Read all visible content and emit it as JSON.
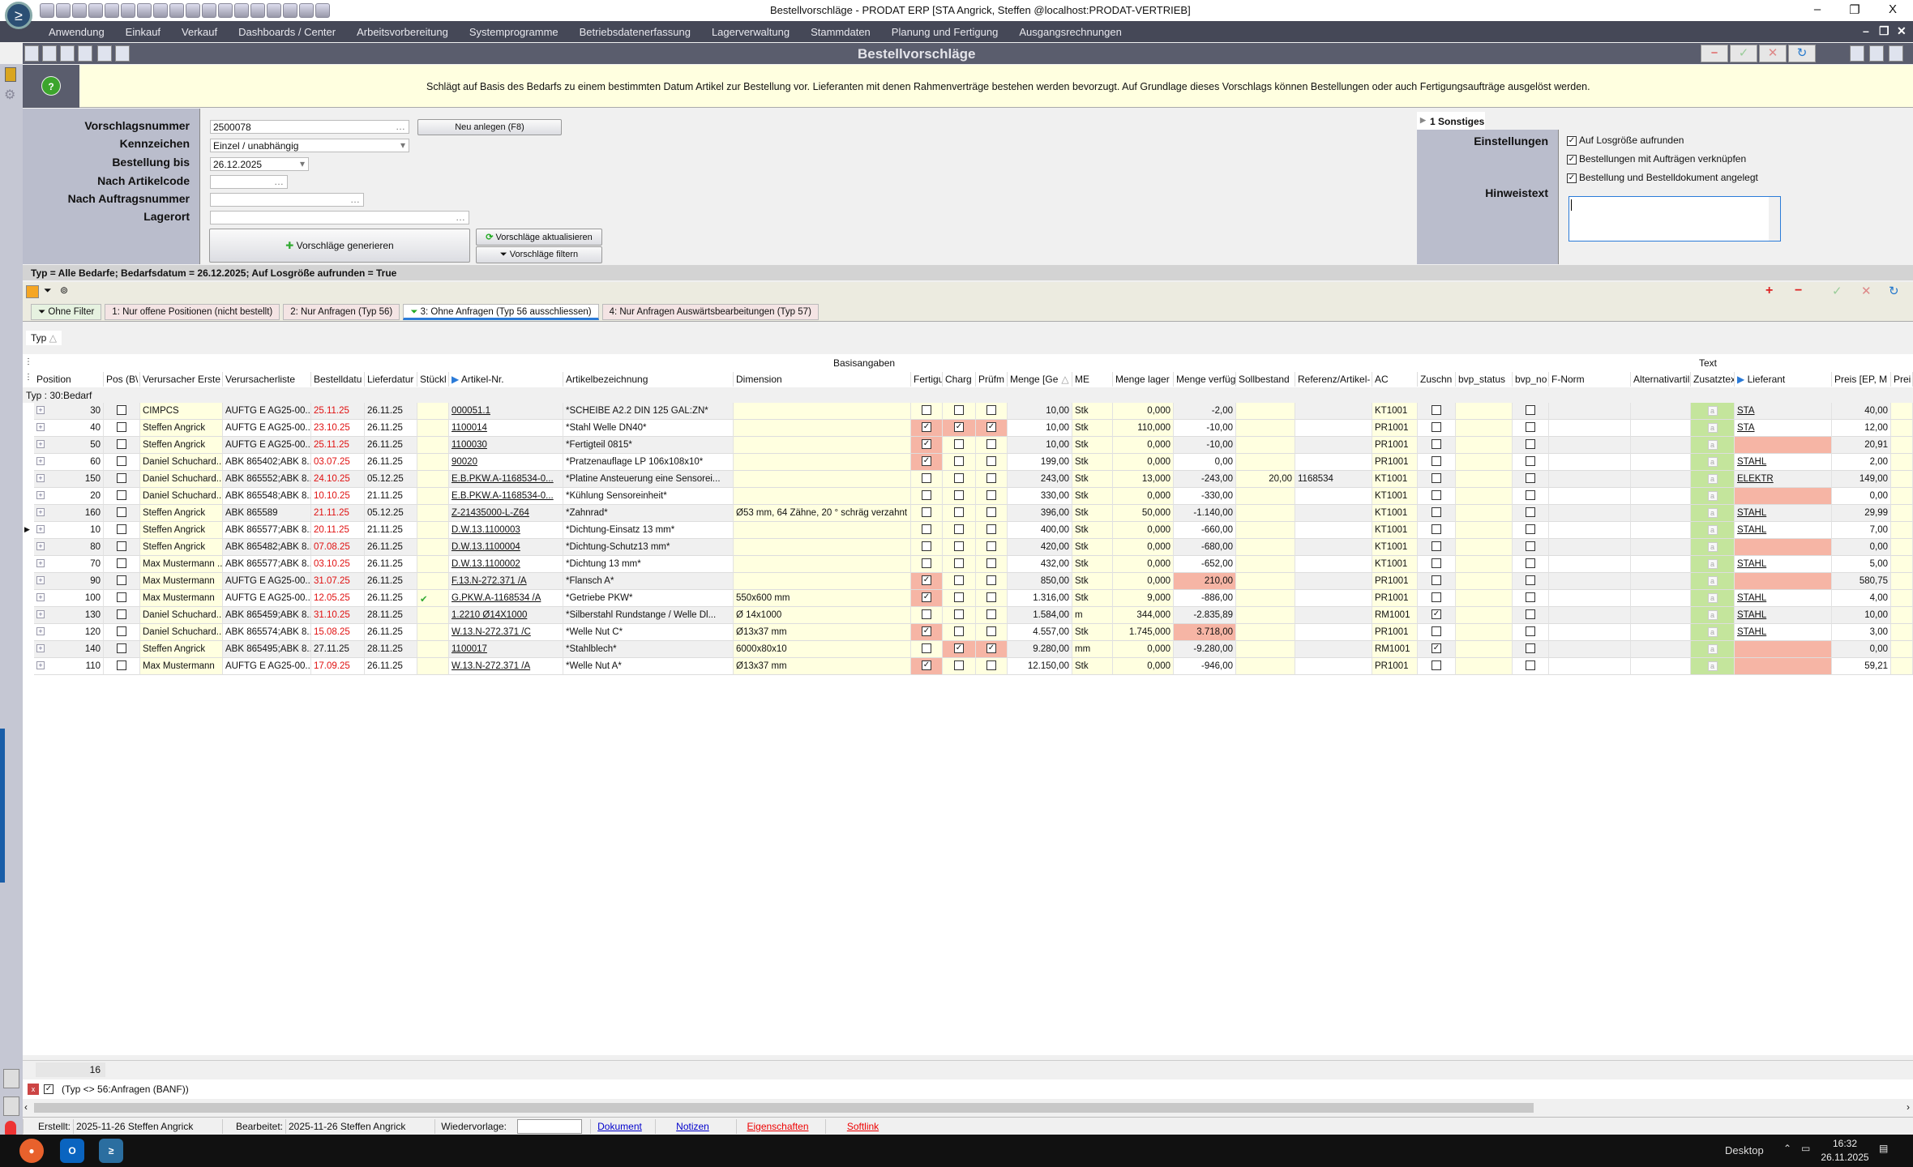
{
  "window": {
    "title": "Bestellvorschläge - PRODAT ERP  [STA Angrick, Steffen @localhost:PRODAT-VERTRIEB]",
    "minimize": "–",
    "restore": "❐",
    "close": "X"
  },
  "menu": [
    "Anwendung",
    "Einkauf",
    "Verkauf",
    "Dashboards / Center",
    "Arbeitsvorbereitung",
    "Systemprogramme",
    "Betriebsdatenerfassung",
    "Lagerverwaltung",
    "Stammdaten",
    "Planung und Fertigung",
    "Ausgangsrechnungen"
  ],
  "form_title": "Bestellvorschläge",
  "toolbar_right": {
    "delete": "−",
    "save": "✓",
    "cancel": "✕",
    "refresh": "↻"
  },
  "banner": {
    "text": "Schlägt auf Basis des Bedarfs zu einem bestimmten Datum Artikel zur Bestellung vor. Lieferanten mit denen Rahmenverträge bestehen werden bevorzugt. Auf Grundlage dieses Vorschlags können Bestellungen oder auch Fertigungsaufträge ausgelöst werden.",
    "help": "?"
  },
  "form": {
    "labels": {
      "vorschlagsnummer": "Vorschlagsnummer",
      "kennzeichen": "Kennzeichen",
      "bestellung_bis": "Bestellung bis",
      "artikelcode": "Nach Artikelcode",
      "auftragsnummer": "Nach Auftragsnummer",
      "lagerort": "Lagerort"
    },
    "values": {
      "vorschlagsnummer": "2500078",
      "kennzeichen": "Einzel / unabhängig",
      "bestellung_bis": "26.12.2025",
      "artikelcode": "",
      "auftragsnummer": "",
      "lagerort": ""
    },
    "buttons": {
      "neu": "Neu anlegen (F8)",
      "generieren": "Vorschläge generieren",
      "aktualisieren": "Vorschläge aktualisieren",
      "filtern": "Vorschläge filtern"
    }
  },
  "sonstiges": {
    "tab": "1 Sonstiges",
    "einstellungen": "Einstellungen",
    "hinweistext": "Hinweistext",
    "hinweis_value": "",
    "checks": [
      {
        "label": "Auf Losgröße aufrunden",
        "checked": true
      },
      {
        "label": "Bestellungen mit Aufträgen verknüpfen",
        "checked": true
      },
      {
        "label": "Bestellung und Bestelldokument angelegt",
        "checked": true
      }
    ]
  },
  "summary": "Typ = Alle Bedarfe; Bedarfsdatum = 26.12.2025; Auf Losgröße aufrunden = True",
  "filter_tabs": [
    {
      "label": "Ohne Filter",
      "active": false
    },
    {
      "label": "1: Nur offene Positionen (nicht bestellt)",
      "active": false
    },
    {
      "label": "2: Nur Anfragen (Typ 56)",
      "active": false
    },
    {
      "label": "3: Ohne Anfragen (Typ 56 ausschliessen)",
      "active": true
    },
    {
      "label": "4: Nur Anfragen Auswärtsbearbeitungen (Typ 57)",
      "active": false
    }
  ],
  "grid": {
    "groupby": "Typ",
    "bands": {
      "basis": "Basisangaben",
      "text": "Text"
    },
    "group_row": "Typ : 30:Bedarf",
    "columns": [
      "Position",
      "Pos (B\\",
      "Verursacher Erste",
      "Verursacherliste",
      "Bestelldatu",
      "Lieferdatur",
      "Stückl",
      "Artikel-Nr.",
      "Artikelbezeichnung",
      "Dimension",
      "Fertigu",
      "Charg",
      "Prüfm",
      "Menge [Ge",
      "ME",
      "Menge lager",
      "Menge verfüg",
      "Sollbestand",
      "Referenz/Artikel-",
      "AC",
      "Zuschn",
      "bvp_status",
      "bvp_no",
      "F-Norm",
      "Alternativartil",
      "Zusatztex",
      "Lieferant",
      "Preis [EP, M",
      "Prei"
    ],
    "rows": [
      {
        "pos": "30",
        "verursacher": "CIMPCS",
        "liste": "AUFTG E AG25-00...",
        "bestell": "25.11.25",
        "bestell_overdue": true,
        "liefer": "26.11.25",
        "stueckliste": false,
        "artikel": "000051.1",
        "bez": "*SCHEIBE A2.2 DIN 125 GAL:ZN*",
        "dim": "",
        "fertig": false,
        "charge": false,
        "pruef": false,
        "menge": "10,00",
        "me": "Stk",
        "lager": "0,000",
        "verf": "-2,00",
        "verf_hl": false,
        "soll": "",
        "ref": "",
        "ac": "KT1001",
        "zuschn": false,
        "lieferant": "STA",
        "preis": "40,00"
      },
      {
        "pos": "40",
        "verursacher": "Steffen Angrick",
        "liste": "AUFTG E AG25-00...",
        "bestell": "23.10.25",
        "bestell_overdue": true,
        "liefer": "26.11.25",
        "stueckliste": false,
        "artikel": "1100014",
        "bez": "*Stahl Welle DN40*",
        "dim": "",
        "fertig": true,
        "charge": true,
        "pruef": true,
        "menge": "10,00",
        "me": "Stk",
        "lager": "110,000",
        "verf": "-10,00",
        "verf_hl": false,
        "soll": "",
        "ref": "",
        "ac": "PR1001",
        "zuschn": false,
        "lieferant": "STA",
        "preis": "12,00"
      },
      {
        "pos": "50",
        "verursacher": "Steffen Angrick",
        "liste": "AUFTG E AG25-00...",
        "bestell": "25.11.25",
        "bestell_overdue": true,
        "liefer": "26.11.25",
        "stueckliste": false,
        "artikel": "1100030",
        "bez": "*Fertigteil 0815*",
        "dim": "",
        "fertig": true,
        "charge": false,
        "pruef": false,
        "menge": "10,00",
        "me": "Stk",
        "lager": "0,000",
        "verf": "-10,00",
        "verf_hl": false,
        "soll": "",
        "ref": "",
        "ac": "PR1001",
        "zuschn": false,
        "lieferant": "",
        "preis": "20,91"
      },
      {
        "pos": "60",
        "verursacher": "Daniel Schuchard...",
        "liste": "ABK 865402;ABK 8...",
        "bestell": "03.07.25",
        "bestell_overdue": true,
        "liefer": "26.11.25",
        "stueckliste": false,
        "artikel": "90020",
        "bez": "*Pratzenauflage LP 106x108x10*",
        "dim": "",
        "fertig": true,
        "charge": false,
        "pruef": false,
        "menge": "199,00",
        "me": "Stk",
        "lager": "0,000",
        "verf": "0,00",
        "verf_hl": false,
        "soll": "",
        "ref": "",
        "ac": "PR1001",
        "zuschn": false,
        "lieferant": "STAHL",
        "preis": "2,00"
      },
      {
        "pos": "150",
        "verursacher": "Daniel Schuchard...",
        "liste": "ABK 865552;ABK 8...",
        "bestell": "24.10.25",
        "bestell_overdue": true,
        "liefer": "05.12.25",
        "stueckliste": false,
        "artikel": "E.B.PKW.A-1168534-0...",
        "bez": "*Platine Ansteuerung eine Sensorei...",
        "dim": "",
        "fertig": false,
        "charge": false,
        "pruef": false,
        "menge": "243,00",
        "me": "Stk",
        "lager": "13,000",
        "verf": "-243,00",
        "verf_hl": false,
        "soll": "20,00",
        "ref": "1168534",
        "ac": "KT1001",
        "zuschn": false,
        "lieferant": "ELEKTR",
        "preis": "149,00"
      },
      {
        "pos": "20",
        "verursacher": "Daniel Schuchard...",
        "liste": "ABK 865548;ABK 8...",
        "bestell": "10.10.25",
        "bestell_overdue": true,
        "liefer": "21.11.25",
        "stueckliste": false,
        "artikel": "E.B.PKW.A-1168534-0...",
        "bez": "*Kühlung Sensoreinheit*",
        "dim": "",
        "fertig": false,
        "charge": false,
        "pruef": false,
        "menge": "330,00",
        "me": "Stk",
        "lager": "0,000",
        "verf": "-330,00",
        "verf_hl": false,
        "soll": "",
        "ref": "",
        "ac": "KT1001",
        "zuschn": false,
        "lieferant": "",
        "preis": "0,00"
      },
      {
        "pos": "160",
        "verursacher": "Steffen Angrick",
        "liste": "ABK 865589",
        "bestell": "21.11.25",
        "bestell_overdue": true,
        "liefer": "05.12.25",
        "stueckliste": false,
        "artikel": "Z-21435000-L-Z64",
        "bez": "*Zahnrad*",
        "dim": "Ø53 mm, 64 Zähne, 20 ° schräg verzahnt",
        "fertig": false,
        "charge": false,
        "pruef": false,
        "menge": "396,00",
        "me": "Stk",
        "lager": "50,000",
        "verf": "-1.140,00",
        "verf_hl": false,
        "soll": "",
        "ref": "",
        "ac": "KT1001",
        "zuschn": false,
        "lieferant": "STAHL",
        "preis": "29,99"
      },
      {
        "pos": "10",
        "current": true,
        "verursacher": "Steffen Angrick",
        "liste": "ABK 865577;ABK 8...",
        "bestell": "20.11.25",
        "bestell_overdue": true,
        "liefer": "21.11.25",
        "stueckliste": false,
        "artikel": "D.W.13.1100003",
        "bez": "*Dichtung-Einsatz 13 mm*",
        "dim": "",
        "fertig": false,
        "charge": false,
        "pruef": false,
        "menge": "400,00",
        "me": "Stk",
        "lager": "0,000",
        "verf": "-660,00",
        "verf_hl": false,
        "soll": "",
        "ref": "",
        "ac": "KT1001",
        "zuschn": false,
        "lieferant": "STAHL",
        "preis": "7,00"
      },
      {
        "pos": "80",
        "verursacher": "Steffen Angrick",
        "liste": "ABK 865482;ABK 8...",
        "bestell": "07.08.25",
        "bestell_overdue": true,
        "liefer": "26.11.25",
        "stueckliste": false,
        "artikel": "D.W.13.1100004",
        "bez": "*Dichtung-Schutz13 mm*",
        "dim": "",
        "fertig": false,
        "charge": false,
        "pruef": false,
        "menge": "420,00",
        "me": "Stk",
        "lager": "0,000",
        "verf": "-680,00",
        "verf_hl": false,
        "soll": "",
        "ref": "",
        "ac": "KT1001",
        "zuschn": false,
        "lieferant": "",
        "preis": "0,00"
      },
      {
        "pos": "70",
        "verursacher": "Max Mustermann ...",
        "liste": "ABK 865577;ABK 8...",
        "bestell": "03.10.25",
        "bestell_overdue": true,
        "liefer": "26.11.25",
        "stueckliste": false,
        "artikel": "D.W.13.1100002",
        "bez": "*Dichtung 13 mm*",
        "dim": "",
        "fertig": false,
        "charge": false,
        "pruef": false,
        "menge": "432,00",
        "me": "Stk",
        "lager": "0,000",
        "verf": "-652,00",
        "verf_hl": false,
        "soll": "",
        "ref": "",
        "ac": "KT1001",
        "zuschn": false,
        "lieferant": "STAHL",
        "preis": "5,00"
      },
      {
        "pos": "90",
        "verursacher": "Max Mustermann",
        "liste": "AUFTG E AG25-00...",
        "bestell": "31.07.25",
        "bestell_overdue": true,
        "liefer": "26.11.25",
        "stueckliste": false,
        "artikel": "F.13.N-272.371 /A",
        "bez": "*Flansch A*",
        "dim": "",
        "fertig": true,
        "charge": false,
        "pruef": false,
        "menge": "850,00",
        "me": "Stk",
        "lager": "0,000",
        "verf": "210,00",
        "verf_hl": true,
        "soll": "",
        "ref": "",
        "ac": "PR1001",
        "zuschn": false,
        "lieferant": "",
        "preis": "580,75"
      },
      {
        "pos": "100",
        "verursacher": "Max Mustermann",
        "liste": "AUFTG E AG25-00...",
        "bestell": "12.05.25",
        "bestell_overdue": true,
        "liefer": "26.11.25",
        "stueckliste": true,
        "artikel": "G.PKW.A-1168534 /A",
        "bez": "*Getriebe PKW*",
        "dim": "550x600 mm",
        "fertig": true,
        "charge": false,
        "pruef": false,
        "menge": "1.316,00",
        "me": "Stk",
        "lager": "9,000",
        "verf": "-886,00",
        "verf_hl": false,
        "soll": "",
        "ref": "",
        "ac": "PR1001",
        "zuschn": false,
        "lieferant": "STAHL",
        "preis": "4,00"
      },
      {
        "pos": "130",
        "verursacher": "Daniel Schuchard...",
        "liste": "ABK 865459;ABK 8...",
        "bestell": "31.10.25",
        "bestell_overdue": true,
        "liefer": "28.11.25",
        "stueckliste": false,
        "artikel": "1.2210 Ø14X1000",
        "bez": "*Silberstahl Rundstange / Welle Dl...",
        "dim": "Ø 14x1000",
        "fertig": false,
        "charge": false,
        "pruef": false,
        "menge": "1.584,00",
        "me": "m",
        "lager": "344,000",
        "verf": "-2.835,89",
        "verf_hl": false,
        "soll": "",
        "ref": "",
        "ac": "RM1001",
        "zuschn": true,
        "lieferant": "STAHL",
        "preis": "10,00"
      },
      {
        "pos": "120",
        "verursacher": "Daniel Schuchard...",
        "liste": "ABK 865574;ABK 8...",
        "bestell": "15.08.25",
        "bestell_overdue": true,
        "liefer": "26.11.25",
        "stueckliste": false,
        "artikel": "W.13.N-272.371 /C",
        "bez": "*Welle Nut C*",
        "dim": "Ø13x37 mm",
        "fertig": true,
        "charge": false,
        "pruef": false,
        "menge": "4.557,00",
        "me": "Stk",
        "lager": "1.745,000",
        "verf": "3.718,00",
        "verf_hl": true,
        "soll": "",
        "ref": "",
        "ac": "PR1001",
        "zuschn": false,
        "lieferant": "STAHL",
        "preis": "3,00"
      },
      {
        "pos": "140",
        "verursacher": "Steffen Angrick",
        "liste": "ABK 865495;ABK 8...",
        "bestell": "27.11.25",
        "bestell_overdue": false,
        "liefer": "28.11.25",
        "stueckliste": false,
        "artikel": "1100017",
        "bez": "*Stahlblech*",
        "dim": "6000x80x10",
        "fertig": false,
        "charge": true,
        "pruef": true,
        "menge": "9.280,00",
        "me": "mm",
        "lager": "0,000",
        "verf": "-9.280,00",
        "verf_hl": false,
        "soll": "",
        "ref": "",
        "ac": "RM1001",
        "zuschn": true,
        "lieferant": "",
        "preis": "0,00"
      },
      {
        "pos": "110",
        "verursacher": "Max Mustermann",
        "liste": "AUFTG E AG25-00...",
        "bestell": "17.09.25",
        "bestell_overdue": true,
        "liefer": "26.11.25",
        "stueckliste": false,
        "artikel": "W.13.N-272.371 /A",
        "bez": "*Welle Nut A*",
        "dim": "Ø13x37 mm",
        "fertig": true,
        "charge": false,
        "pruef": false,
        "menge": "12.150,00",
        "me": "Stk",
        "lager": "0,000",
        "verf": "-946,00",
        "verf_hl": false,
        "soll": "",
        "ref": "",
        "ac": "PR1001",
        "zuschn": false,
        "lieferant": "",
        "preis": "59,21"
      }
    ],
    "count": "16",
    "active_filter": "(Typ <> 56:Anfragen (BANF))"
  },
  "statusbar": {
    "erstellt_label": "Erstellt:",
    "erstellt": "2025-11-26  Steffen Angrick",
    "bearbeitet_label": "Bearbeitet:",
    "bearbeitet": "2025-11-26  Steffen Angrick",
    "wiedervorlage_label": "Wiedervorlage:",
    "links": [
      "Dokument",
      "Notizen",
      "Eigenschaften",
      "Softlink"
    ]
  },
  "taskbar": {
    "desktop": "Desktop",
    "time": "16:32",
    "date": "26.11.2025"
  },
  "colors": {
    "highlight": "#f6b5a5",
    "overdue": "#e01010",
    "editable": "#ffffe0",
    "text_col": "#c4e59c",
    "menubar": "#454857"
  }
}
